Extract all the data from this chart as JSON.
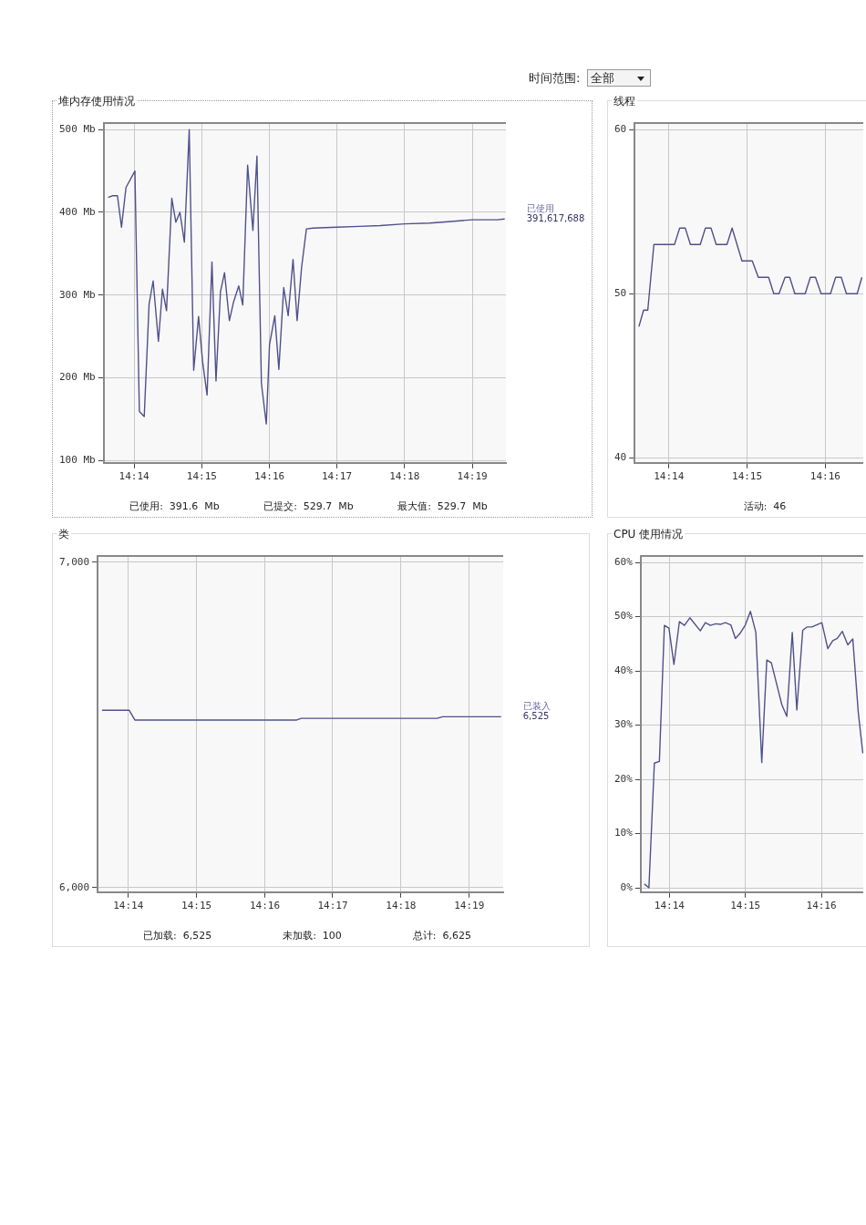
{
  "chart_data": [
    {
      "type": "other",
      "title": "时间范围:",
      "annotations": [
        "全部"
      ]
    },
    {
      "type": "line",
      "title": "堆内存使用情况",
      "color": "#50508c",
      "marker": "none",
      "grid": true,
      "x": [
        14.2269,
        14.2279,
        14.2292,
        14.2302,
        14.2313,
        14.2335,
        14.2346,
        14.2358,
        14.237,
        14.238,
        14.2393,
        14.2403,
        14.2413,
        14.2426,
        14.2436,
        14.2446,
        14.2457,
        14.2469,
        14.248,
        14.2492,
        14.2502,
        14.2513,
        14.2525,
        14.2535,
        14.2546,
        14.2556,
        14.2568,
        14.2578,
        14.2591,
        14.2601,
        14.2613,
        14.2626,
        14.2636,
        14.2647,
        14.2659,
        14.2667,
        14.268,
        14.269,
        14.2702,
        14.2713,
        14.2725,
        14.2735,
        14.2746,
        14.2758,
        14.2775,
        14.2833,
        14.2888,
        14.294,
        14.3,
        14.3062,
        14.3115,
        14.3167,
        14.3228,
        14.3247
      ],
      "values": [
        418,
        420,
        420,
        382,
        430,
        450,
        159,
        153,
        289,
        317,
        244,
        307,
        281,
        417,
        388,
        400,
        364,
        500,
        209,
        274,
        219,
        179,
        340,
        196,
        304,
        327,
        269,
        291,
        311,
        288,
        457,
        378,
        468,
        193,
        144,
        240,
        275,
        210,
        309,
        275,
        343,
        269,
        333,
        380,
        381,
        382,
        383,
        384,
        386,
        387,
        389,
        391,
        391,
        392
      ],
      "xlim": [
        14.2258,
        14.325
      ],
      "xticks": [
        {
          "value": 14.2333,
          "label": "14:14"
        },
        {
          "value": 14.25,
          "label": "14:15"
        },
        {
          "value": 14.2667,
          "label": "14:16"
        },
        {
          "value": 14.2833,
          "label": "14:17"
        },
        {
          "value": 14.3,
          "label": "14:18"
        },
        {
          "value": 14.3167,
          "label": "14:19"
        }
      ],
      "ylim": [
        97,
        508
      ],
      "yticks": [
        {
          "value": 100,
          "label": "100 Mb"
        },
        {
          "value": 200,
          "label": "200 Mb"
        },
        {
          "value": 300,
          "label": "300 Mb"
        },
        {
          "value": 400,
          "label": "400 Mb"
        },
        {
          "value": 500,
          "label": "500 Mb"
        }
      ],
      "annotations": [
        {
          "text": "已使用\n391,617,688",
          "x": 14.3247,
          "y": 392
        },
        "已使用:  391.6  Mb",
        "已提交:  529.7  Mb",
        "最大值:  529.7  Mb"
      ]
    },
    {
      "type": "line",
      "title": "线程",
      "color": "#50508c",
      "marker": "none",
      "grid": true,
      "x": [
        14.2269,
        14.2279,
        14.2288,
        14.2301,
        14.2345,
        14.2356,
        14.2368,
        14.2379,
        14.24,
        14.2411,
        14.2423,
        14.2434,
        14.2457,
        14.2468,
        14.2489,
        14.2511,
        14.2524,
        14.2546,
        14.2557,
        14.2568,
        14.2581,
        14.2591,
        14.2602,
        14.2624,
        14.2635,
        14.2646,
        14.2658,
        14.2678,
        14.2689,
        14.2701,
        14.2712,
        14.2735,
        14.2745
      ],
      "values": [
        48,
        49,
        49,
        53,
        53,
        54,
        54,
        53,
        53,
        54,
        54,
        53,
        53,
        54,
        52,
        52,
        51,
        51,
        50,
        50,
        51,
        51,
        50,
        50,
        51,
        51,
        50,
        50,
        51,
        51,
        50,
        50,
        51
      ],
      "xlim": [
        14.226,
        14.2748
      ],
      "xticks": [
        {
          "value": 14.2333,
          "label": "14:14"
        },
        {
          "value": 14.25,
          "label": "14:15"
        },
        {
          "value": 14.2667,
          "label": "14:16"
        }
      ],
      "ylim": [
        39.7,
        60.4
      ],
      "yticks": [
        40,
        50,
        60
      ],
      "annotations": [
        "活动:  46"
      ]
    },
    {
      "type": "line",
      "title": "类",
      "color": "#50508c",
      "marker": "none",
      "grid": true,
      "x": [
        14.2269,
        14.2335,
        14.2349,
        14.2745,
        14.2756,
        14.3088,
        14.3102,
        14.3245
      ],
      "values": [
        6545,
        6545,
        6515,
        6515,
        6520,
        6520,
        6525,
        6525
      ],
      "xlim": [
        14.2258,
        14.325
      ],
      "xticks": [
        {
          "value": 14.2333,
          "label": "14:14"
        },
        {
          "value": 14.25,
          "label": "14:15"
        },
        {
          "value": 14.2667,
          "label": "14:16"
        },
        {
          "value": 14.2833,
          "label": "14:17"
        },
        {
          "value": 14.3,
          "label": "14:18"
        },
        {
          "value": 14.3167,
          "label": "14:19"
        }
      ],
      "ylim": [
        5986,
        7019
      ],
      "yticks": [
        {
          "value": 6000,
          "label": "6,000"
        },
        {
          "value": 7000,
          "label": "7,000"
        }
      ],
      "annotations": [
        {
          "text": "已装入\n6,525",
          "x": 14.3245,
          "y": 6525
        },
        "已加载:  6,525",
        "未加载:  100",
        "总计:  6,625"
      ]
    },
    {
      "type": "line",
      "title": "CPU 使用情况",
      "color": "#50508c",
      "marker": "none",
      "grid": true,
      "x": [
        14.2278,
        14.2288,
        14.23,
        14.2311,
        14.2322,
        14.2332,
        14.2343,
        14.2355,
        14.2366,
        14.2378,
        14.2401,
        14.2412,
        14.2423,
        14.2435,
        14.2446,
        14.2456,
        14.2468,
        14.2478,
        14.2488,
        14.25,
        14.2511,
        14.2523,
        14.2536,
        14.2547,
        14.2557,
        14.258,
        14.2591,
        14.2603,
        14.2613,
        14.2626,
        14.2635,
        14.2646,
        14.2668,
        14.2681,
        14.2692,
        14.2702,
        14.2713,
        14.2725,
        14.2736,
        14.2748,
        14.2758
      ],
      "values": [
        0.7,
        0,
        23.0,
        23.3,
        48.4,
        47.9,
        41.2,
        49.1,
        48.4,
        49.8,
        47.4,
        48.9,
        48.4,
        48.7,
        48.6,
        48.9,
        48.5,
        46.0,
        46.9,
        48.5,
        51.0,
        47.1,
        23.1,
        42.0,
        41.5,
        33.8,
        31.6,
        47.1,
        32.8,
        47.5,
        48.1,
        48.1,
        48.9,
        44.1,
        45.6,
        46.0,
        47.3,
        44.8,
        45.9,
        32.4,
        24.8
      ],
      "xlim": [
        14.227,
        14.2759
      ],
      "xticks": [
        {
          "value": 14.2333,
          "label": "14:14"
        },
        {
          "value": 14.25,
          "label": "14:15"
        },
        {
          "value": 14.2667,
          "label": "14:16"
        }
      ],
      "ylim": [
        -0.8,
        61.2
      ],
      "yticks": [
        {
          "value": 0,
          "label": "0%"
        },
        {
          "value": 10,
          "label": "10%"
        },
        {
          "value": 20,
          "label": "20%"
        },
        {
          "value": 30,
          "label": "30%"
        },
        {
          "value": 40,
          "label": "40%"
        },
        {
          "value": 50,
          "label": "50%"
        },
        {
          "value": 60,
          "label": "60%"
        }
      ]
    }
  ]
}
